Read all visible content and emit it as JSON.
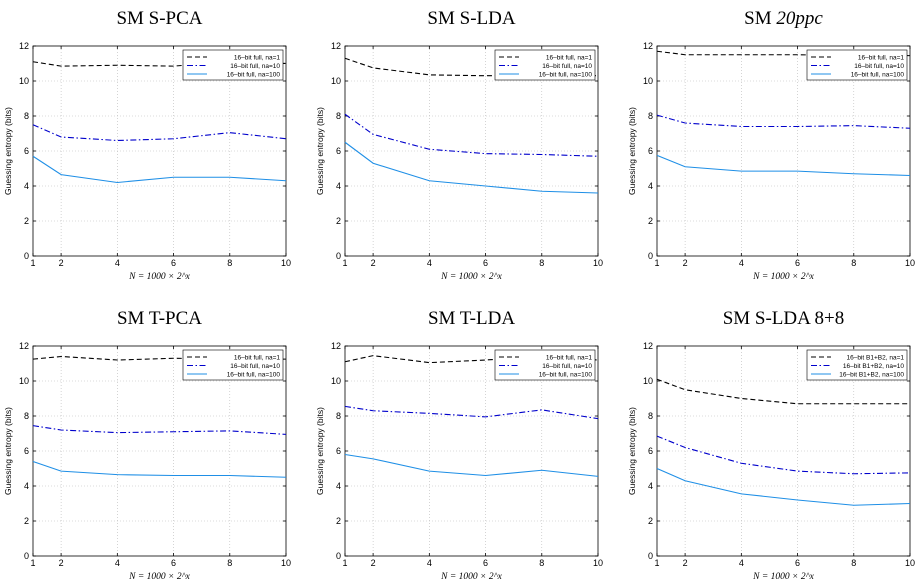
{
  "chart_data": [
    {
      "type": "line",
      "title": "SM S-PCA",
      "xlabel": "N = 1000 × 2^x",
      "ylabel": "Guessing entropy (bits)",
      "xlim": [
        1,
        10
      ],
      "ylim": [
        0,
        12
      ],
      "x_ticks": [
        1,
        2,
        4,
        6,
        8,
        10
      ],
      "y_ticks": [
        0,
        2,
        4,
        6,
        8,
        10,
        12
      ],
      "grid": true,
      "legend_position": "top-right",
      "x": [
        1,
        2,
        4,
        6,
        8,
        10
      ],
      "series": [
        {
          "name": "16–bit full, na=1",
          "style": "dashed",
          "color": "#000000",
          "values": [
            11.1,
            10.85,
            10.9,
            10.85,
            11.1,
            11.0
          ]
        },
        {
          "name": "16–bit full, na=10",
          "style": "dashdot",
          "color": "#0000cc",
          "values": [
            7.5,
            6.8,
            6.6,
            6.7,
            7.05,
            6.7
          ]
        },
        {
          "name": "16–bit full, na=100",
          "style": "solid",
          "color": "#1f8fe6",
          "values": [
            5.7,
            4.65,
            4.2,
            4.5,
            4.5,
            4.3
          ]
        }
      ]
    },
    {
      "type": "line",
      "title": "SM S-LDA",
      "xlabel": "N = 1000 × 2^x",
      "ylabel": "Guessing entropy (bits)",
      "xlim": [
        1,
        10
      ],
      "ylim": [
        0,
        12
      ],
      "x_ticks": [
        1,
        2,
        4,
        6,
        8,
        10
      ],
      "y_ticks": [
        0,
        2,
        4,
        6,
        8,
        10,
        12
      ],
      "grid": true,
      "legend_position": "top-right",
      "x": [
        1,
        2,
        4,
        6,
        8,
        10
      ],
      "series": [
        {
          "name": "16–bit full, na=1",
          "style": "dashed",
          "color": "#000000",
          "values": [
            11.3,
            10.75,
            10.35,
            10.3,
            10.35,
            10.3
          ]
        },
        {
          "name": "16–bit full, na=10",
          "style": "dashdot",
          "color": "#0000cc",
          "values": [
            8.1,
            6.95,
            6.1,
            5.85,
            5.8,
            5.7
          ]
        },
        {
          "name": "16–bit full, na=100",
          "style": "solid",
          "color": "#1f8fe6",
          "values": [
            6.5,
            5.3,
            4.3,
            4.0,
            3.7,
            3.6
          ]
        }
      ]
    },
    {
      "type": "line",
      "title": "SM 20ppc",
      "title_prefix": "SM ",
      "title_italic": "20ppc",
      "xlabel": "N = 1000 × 2^x",
      "ylabel": "Guessing entropy (bits)",
      "xlim": [
        1,
        10
      ],
      "ylim": [
        0,
        12
      ],
      "x_ticks": [
        1,
        2,
        4,
        6,
        8,
        10
      ],
      "y_ticks": [
        0,
        2,
        4,
        6,
        8,
        10,
        12
      ],
      "grid": true,
      "legend_position": "top-right",
      "x": [
        1,
        2,
        4,
        6,
        8,
        10
      ],
      "series": [
        {
          "name": "16–bit full, na=1",
          "style": "dashed",
          "color": "#000000",
          "values": [
            11.7,
            11.5,
            11.5,
            11.5,
            11.45,
            11.45
          ]
        },
        {
          "name": "16–bit full, na=10",
          "style": "dashdot",
          "color": "#0000cc",
          "values": [
            8.05,
            7.6,
            7.4,
            7.4,
            7.45,
            7.3
          ]
        },
        {
          "name": "16–bit full, na=100",
          "style": "solid",
          "color": "#1f8fe6",
          "values": [
            5.75,
            5.1,
            4.85,
            4.85,
            4.7,
            4.6
          ]
        }
      ]
    },
    {
      "type": "line",
      "title": "SM T-PCA",
      "xlabel": "N = 1000 × 2^x",
      "ylabel": "Guessing entropy (bits)",
      "xlim": [
        1,
        10
      ],
      "ylim": [
        0,
        12
      ],
      "x_ticks": [
        1,
        2,
        4,
        6,
        8,
        10
      ],
      "y_ticks": [
        0,
        2,
        4,
        6,
        8,
        10,
        12
      ],
      "grid": true,
      "legend_position": "top-right",
      "x": [
        1,
        2,
        4,
        6,
        8,
        10
      ],
      "series": [
        {
          "name": "16–bit full, na=1",
          "style": "dashed",
          "color": "#000000",
          "values": [
            11.25,
            11.4,
            11.2,
            11.3,
            11.25,
            11.25
          ]
        },
        {
          "name": "16–bit full, na=10",
          "style": "dashdot",
          "color": "#0000cc",
          "values": [
            7.45,
            7.2,
            7.05,
            7.1,
            7.15,
            6.95
          ]
        },
        {
          "name": "16–bit full, na=100",
          "style": "solid",
          "color": "#1f8fe6",
          "values": [
            5.4,
            4.85,
            4.65,
            4.6,
            4.6,
            4.5
          ]
        }
      ]
    },
    {
      "type": "line",
      "title": "SM T-LDA",
      "xlabel": "N = 1000 × 2^x",
      "ylabel": "Guessing entropy (bits)",
      "xlim": [
        1,
        10
      ],
      "ylim": [
        0,
        12
      ],
      "x_ticks": [
        1,
        2,
        4,
        6,
        8,
        10
      ],
      "y_ticks": [
        0,
        2,
        4,
        6,
        8,
        10,
        12
      ],
      "grid": true,
      "legend_position": "top-right",
      "x": [
        1,
        2,
        4,
        6,
        8,
        10
      ],
      "series": [
        {
          "name": "16–bit full, na=1",
          "style": "dashed",
          "color": "#000000",
          "values": [
            11.1,
            11.45,
            11.05,
            11.2,
            11.4,
            11.2
          ]
        },
        {
          "name": "16–bit full, na=10",
          "style": "dashdot",
          "color": "#0000cc",
          "values": [
            8.55,
            8.3,
            8.15,
            7.95,
            8.35,
            7.85
          ]
        },
        {
          "name": "16–bit full, na=100",
          "style": "solid",
          "color": "#1f8fe6",
          "values": [
            5.8,
            5.55,
            4.85,
            4.6,
            4.9,
            4.55
          ]
        }
      ]
    },
    {
      "type": "line",
      "title": "SM S-LDA 8+8",
      "xlabel": "N = 1000 × 2^x",
      "ylabel": "Guessing entropy (bits)",
      "xlim": [
        1,
        10
      ],
      "ylim": [
        0,
        12
      ],
      "x_ticks": [
        1,
        2,
        4,
        6,
        8,
        10
      ],
      "y_ticks": [
        0,
        2,
        4,
        6,
        8,
        10,
        12
      ],
      "grid": true,
      "legend_position": "top-right",
      "x": [
        1,
        2,
        4,
        6,
        8,
        10
      ],
      "series": [
        {
          "name": "16–bit B1+B2, na=1",
          "style": "dashed",
          "color": "#000000",
          "values": [
            10.1,
            9.5,
            9.0,
            8.7,
            8.7,
            8.7
          ]
        },
        {
          "name": "16–bit B1+B2, na=10",
          "style": "dashdot",
          "color": "#0000cc",
          "values": [
            6.85,
            6.2,
            5.3,
            4.85,
            4.7,
            4.75
          ]
        },
        {
          "name": "16–bit B1+B2, na=100",
          "style": "solid",
          "color": "#1f8fe6",
          "values": [
            5.0,
            4.3,
            3.55,
            3.2,
            2.9,
            3.0
          ]
        }
      ]
    }
  ]
}
